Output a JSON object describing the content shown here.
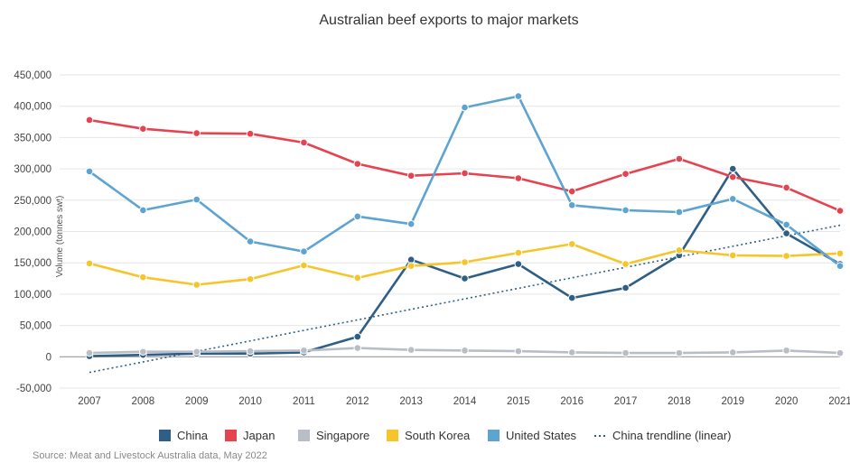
{
  "chart_data": {
    "type": "line",
    "title": "Australian beef exports to major markets",
    "ylabel": "Volume (tonnes swt)",
    "xlabel": "",
    "source": "Source: Meat and Livestock Australia data, May 2022",
    "ylim": [
      -50000,
      450000
    ],
    "yticks": [
      -50000,
      0,
      50000,
      100000,
      150000,
      200000,
      250000,
      300000,
      350000,
      400000,
      450000
    ],
    "ytick_labels": [
      "-50,000",
      "0",
      "50,000",
      "100,000",
      "150,000",
      "200,000",
      "250,000",
      "300,000",
      "350,000",
      "400,000",
      "450,000"
    ],
    "grid": true,
    "legend_position": "bottom",
    "categories": [
      "2007",
      "2008",
      "2009",
      "2010",
      "2011",
      "2012",
      "2013",
      "2014",
      "2015",
      "2016",
      "2017",
      "2018",
      "2019",
      "2020",
      "2021"
    ],
    "series": [
      {
        "name": "China",
        "color": "#2f5f86",
        "values": [
          1000,
          3000,
          5000,
          5000,
          7000,
          32000,
          155000,
          125000,
          148000,
          94000,
          110000,
          162000,
          300000,
          197000,
          148000
        ]
      },
      {
        "name": "Japan",
        "color": "#e5434f",
        "values": [
          378000,
          364000,
          357000,
          356000,
          342000,
          308000,
          289000,
          293000,
          285000,
          264000,
          292000,
          316000,
          287000,
          270000,
          233000
        ]
      },
      {
        "name": "Singapore",
        "color": "#b9bec6",
        "values": [
          6000,
          8000,
          8000,
          9000,
          10000,
          14000,
          11000,
          10000,
          9000,
          7000,
          6000,
          6000,
          7000,
          10000,
          6000
        ]
      },
      {
        "name": "South Korea",
        "color": "#f5c52c",
        "values": [
          149000,
          127000,
          115000,
          124000,
          146000,
          126000,
          145000,
          151000,
          166000,
          180000,
          148000,
          170000,
          162000,
          161000,
          165000
        ]
      },
      {
        "name": "United States",
        "color": "#5ea4d1",
        "values": [
          296000,
          234000,
          251000,
          184000,
          168000,
          224000,
          212000,
          398000,
          416000,
          242000,
          234000,
          231000,
          252000,
          211000,
          145000
        ]
      }
    ],
    "trendline": {
      "name": "China trendline (linear)",
      "color": "#2f5f86",
      "start": -25000,
      "end": 210000
    }
  }
}
